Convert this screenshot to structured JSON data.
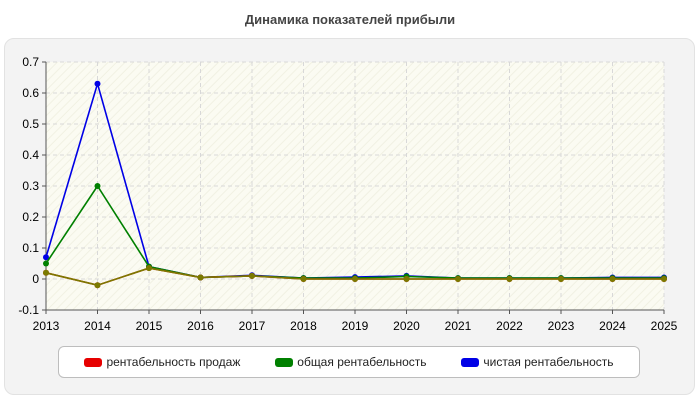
{
  "chart_data": {
    "type": "line",
    "title": "Динамика показателей прибыли",
    "xlabel": "",
    "ylabel": "",
    "categories": [
      "2013",
      "2014",
      "2015",
      "2016",
      "2017",
      "2018",
      "2019",
      "2020",
      "2021",
      "2022",
      "2023",
      "2024",
      "2025"
    ],
    "ylim": [
      -0.1,
      0.7
    ],
    "yticks": [
      "-0.1",
      "0",
      "0.1",
      "0.2",
      "0.3",
      "0.4",
      "0.5",
      "0.6",
      "0.7"
    ],
    "grid": true,
    "legend_position": "bottom",
    "series": [
      {
        "name": "рентабельность продаж",
        "color": "#e60000",
        "values": [
          0.02,
          -0.02,
          0.035,
          0.005,
          0.01,
          0.0,
          0.0,
          0.0,
          0.0,
          0.0,
          0.0,
          0.0,
          0.0
        ]
      },
      {
        "name": "общая рентабельность",
        "color": "#008000",
        "values": [
          0.05,
          0.3,
          0.04,
          0.005,
          0.01,
          0.003,
          0.003,
          0.008,
          0.003,
          0.003,
          0.003,
          0.003,
          0.003
        ]
      },
      {
        "name": "чистая рентабельность",
        "color": "#0000e6",
        "values": [
          0.07,
          0.63,
          0.04,
          0.005,
          0.012,
          0.003,
          0.006,
          0.01,
          0.003,
          0.003,
          0.003,
          0.005,
          0.005
        ]
      }
    ],
    "overlay_color": "#7a7a00"
  }
}
